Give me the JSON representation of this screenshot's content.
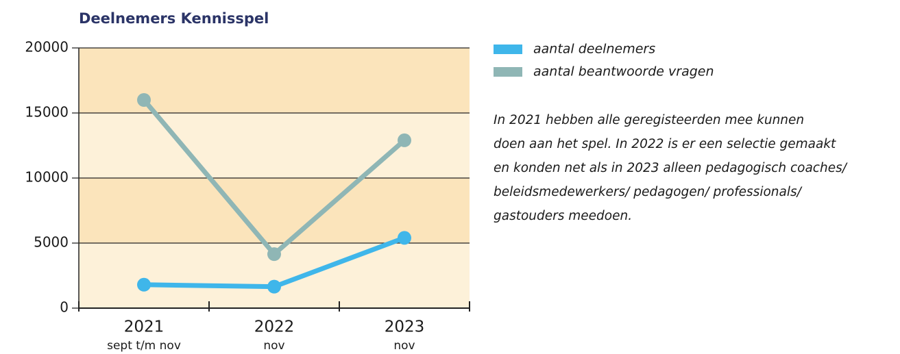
{
  "chart_data": {
    "type": "line",
    "title": "Deelnemers Kennisspel",
    "categories": [
      "2021",
      "2022",
      "2023"
    ],
    "category_sublabels": [
      "sept t/m nov",
      "nov",
      "nov"
    ],
    "series": [
      {
        "name": "aantal deelnemers",
        "color": "#3fb6ea",
        "values": [
          1800,
          1650,
          5400
        ]
      },
      {
        "name": "aantal beantwoorde vragen",
        "color": "#8fb6b5",
        "values": [
          16000,
          4150,
          12900
        ]
      }
    ],
    "ylim": [
      0,
      20000
    ],
    "yticks": [
      0,
      5000,
      10000,
      15000,
      20000
    ],
    "grid": true,
    "annotation": [
      "In 2021 hebben alle geregisteerden mee kunnen",
      "doen aan het spel. In 2022 is er een selectie gemaakt",
      "en konden net als in 2023 alleen pedagogisch coaches/",
      "beleidsmedewerkers/ pedagogen/ professionals/",
      "gastouders meedoen."
    ]
  }
}
